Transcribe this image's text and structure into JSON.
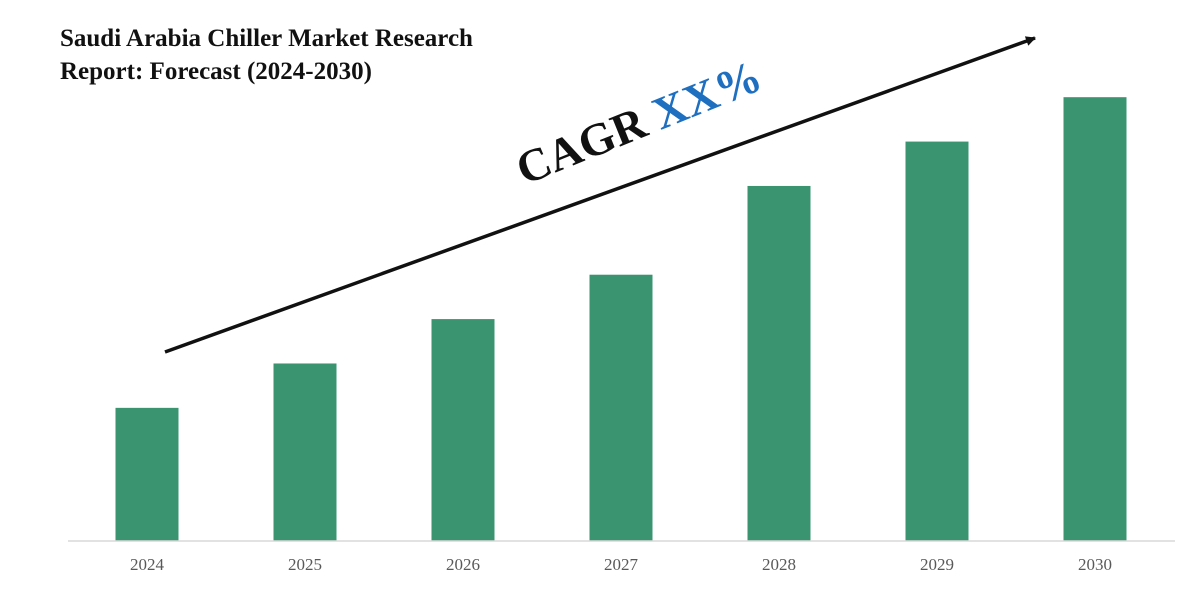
{
  "title": "Saudi Arabia Chiller Market Research Report: Forecast (2024-2030)",
  "cagr": {
    "label": "CAGR",
    "value": "XX%"
  },
  "colors": {
    "bar": "#3a9470",
    "axis": "#d9d9d9",
    "tick_text": "#595959",
    "cagr_value": "#1f6fc0"
  },
  "chart_data": {
    "type": "bar",
    "title": "Saudi Arabia Chiller Market Research Report: Forecast (2024-2030)",
    "categories": [
      "2024",
      "2025",
      "2026",
      "2027",
      "2028",
      "2029",
      "2030"
    ],
    "values": [
      3,
      4,
      5,
      6,
      8,
      9,
      10
    ],
    "ylim": [
      0,
      10.5
    ],
    "xlabel": "",
    "ylabel": "",
    "grid": false,
    "legend": "none",
    "annotation": "CAGR XX%"
  }
}
